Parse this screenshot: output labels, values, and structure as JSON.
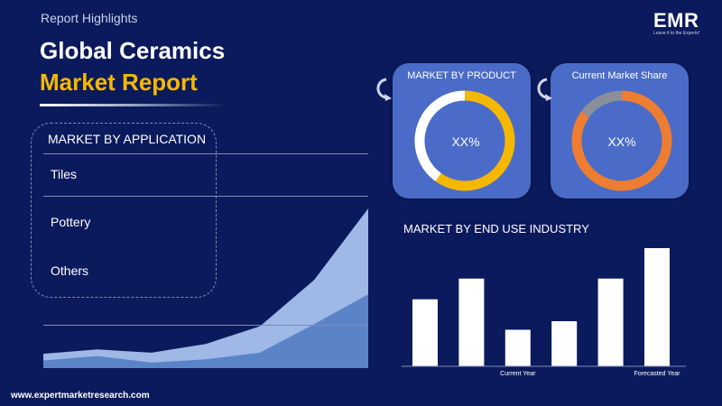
{
  "header": {
    "report_highlights": "Report Highlights",
    "title_line1": "Global Ceramics",
    "title_line2": "Market Report"
  },
  "logo": {
    "name": "EMR",
    "tagline": "Leave it to the Experts!"
  },
  "application": {
    "heading": "MARKET BY APPLICATION",
    "items": [
      "Tiles",
      "Pottery",
      "Others"
    ]
  },
  "product_card": {
    "title": "MARKET BY PRODUCT",
    "value": "XX%"
  },
  "share_card": {
    "title": "Current Market Share",
    "value": "XX%"
  },
  "end_use": {
    "title": "MARKET BY END USE INDUSTRY"
  },
  "colors": {
    "background": "#0b1a5c",
    "accent_yellow": "#f5b800",
    "accent_orange": "#ed7d31",
    "card": "#4a6cc8",
    "area_light": "#9fb8e6",
    "area_dark": "#5b84c8"
  },
  "chart_data": [
    {
      "type": "area",
      "series": [
        {
          "values": [
            13,
            17,
            14,
            22,
            38,
            80,
            145
          ]
        },
        {
          "values": [
            7,
            11,
            5,
            8,
            14,
            40,
            67
          ]
        }
      ],
      "ylim": [
        0,
        150
      ]
    },
    {
      "type": "donut",
      "center_label": "XX%",
      "slices": [
        {
          "value": 60,
          "color": "#f5b800"
        },
        {
          "value": 40,
          "color": "#ffffff"
        }
      ]
    },
    {
      "type": "donut",
      "center_label": "XX%",
      "slices": [
        {
          "value": 85,
          "color": "#ed7d31"
        },
        {
          "value": 15,
          "color": "#8a8f9a"
        }
      ]
    },
    {
      "type": "bar",
      "categories": [
        "",
        "",
        "Current Year",
        "",
        "",
        "Forecasted Year"
      ],
      "values": [
        55,
        72,
        30,
        37,
        72,
        97
      ],
      "ylim": [
        0,
        100
      ]
    }
  ]
}
